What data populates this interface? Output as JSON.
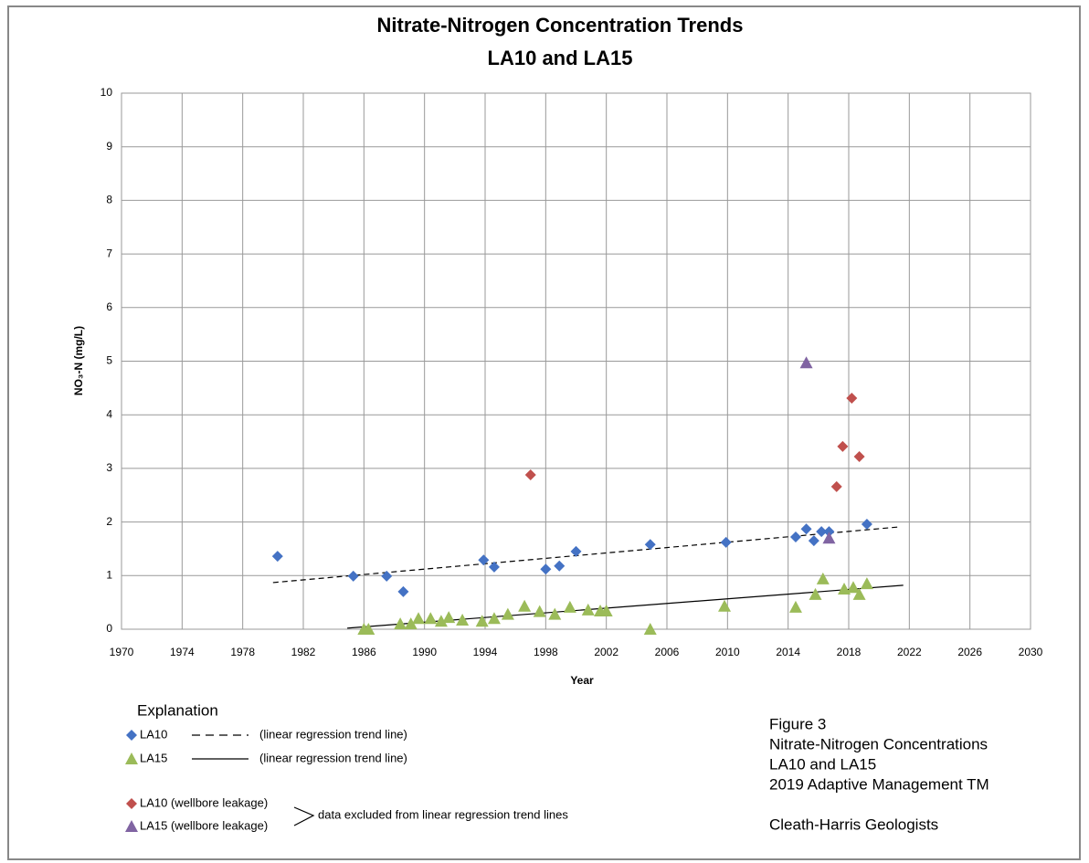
{
  "chart_data": {
    "type": "scatter",
    "title": "Nitrate-Nitrogen Concentration Trends",
    "subtitle": "LA10 and LA15",
    "xlabel": "Year",
    "ylabel": "NO₃-N (mg/L)",
    "xlim": [
      1970,
      2030
    ],
    "xticks": [
      1970,
      1974,
      1978,
      1982,
      1986,
      1990,
      1994,
      1998,
      2002,
      2006,
      2010,
      2014,
      2018,
      2022,
      2026,
      2030
    ],
    "ylim": [
      0,
      10
    ],
    "yticks": [
      0,
      1,
      2,
      3,
      4,
      5,
      6,
      7,
      8,
      9,
      10
    ],
    "grid": true,
    "legend_title": "Explanation",
    "legend_note": "data excluded from linear regression trend lines",
    "caption": [
      "Figure 3",
      "Nitrate-Nitrogen Concentrations",
      "LA10 and LA15",
      "2019 Adaptive Management TM",
      "Cleath-Harris Geologists"
    ],
    "series": [
      {
        "name": "LA10",
        "color": "#4472c4",
        "marker": "diamond",
        "x": [
          1980.3,
          1985.3,
          1987.5,
          1988.6,
          1993.9,
          1994.6,
          1998.0,
          1998.9,
          2000.0,
          2004.9,
          2009.9,
          2014.5,
          2015.2,
          2015.7,
          2016.2,
          2016.7,
          2019.2
        ],
        "values": [
          1.36,
          0.99,
          0.99,
          0.7,
          1.29,
          1.16,
          1.12,
          1.18,
          1.45,
          1.58,
          1.62,
          1.72,
          1.87,
          1.65,
          1.82,
          1.82,
          1.96
        ],
        "trend_label": "(linear regression trend line)",
        "trend_dash": true,
        "trend_x": [
          1980.0,
          2021.4
        ],
        "trend_y": [
          0.87,
          1.91
        ]
      },
      {
        "name": "LA15",
        "color": "#9bbb59",
        "marker": "triangle",
        "x": [
          1986.0,
          1986.3,
          1988.4,
          1989.1,
          1989.6,
          1990.4,
          1991.1,
          1991.6,
          1992.5,
          1993.8,
          1994.6,
          1995.5,
          1996.6,
          1997.6,
          1998.6,
          1999.6,
          2000.8,
          2001.6,
          2002.0,
          2004.9,
          2009.8,
          2014.5,
          2015.8,
          2016.3,
          2017.7,
          2018.3,
          2018.7,
          2019.2
        ],
        "values": [
          0,
          0,
          0.1,
          0.1,
          0.2,
          0.2,
          0.15,
          0.22,
          0.17,
          0.15,
          0.2,
          0.28,
          0.43,
          0.33,
          0.28,
          0.41,
          0.36,
          0.34,
          0.34,
          0,
          0.43,
          0.41,
          0.65,
          0.94,
          0.75,
          0.78,
          0.65,
          0.85
        ],
        "trend_label": "(linear regression trend line)",
        "trend_dash": false,
        "trend_x": [
          1984.9,
          2021.6
        ],
        "trend_y": [
          0.02,
          0.82
        ]
      },
      {
        "name": "LA10 (wellbore leakage)",
        "color": "#c0504d",
        "marker": "diamond",
        "x": [
          1997.0,
          2017.2,
          2017.6,
          2018.2,
          2018.7
        ],
        "values": [
          2.88,
          2.66,
          3.41,
          4.31,
          3.22
        ]
      },
      {
        "name": "LA15 (wellbore leakage)",
        "color": "#8064a2",
        "marker": "triangle",
        "x": [
          2015.2,
          2016.7
        ],
        "values": [
          4.97,
          1.7
        ]
      }
    ]
  }
}
